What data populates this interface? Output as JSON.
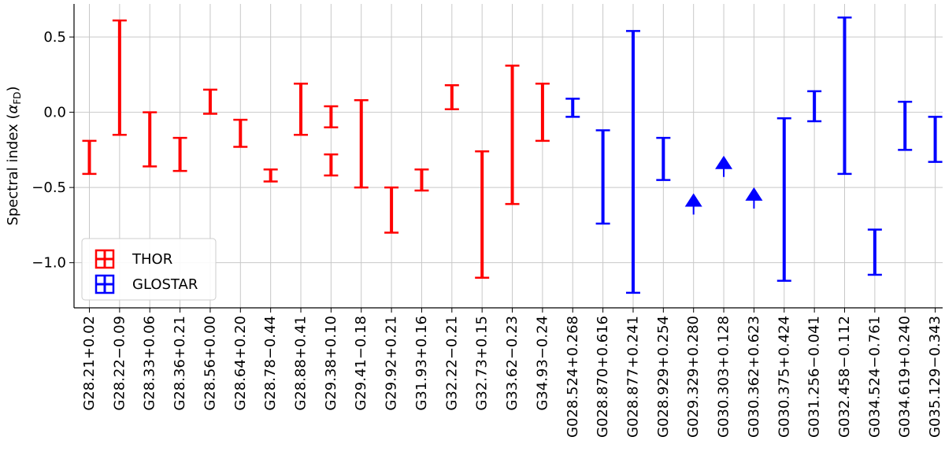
{
  "chart_data": {
    "type": "errorbar",
    "ylabel": "Spectral index (",
    "ylabel_symbol": "α",
    "ylabel_subscript": "FD",
    "ylabel_close": ")",
    "ylim": [
      -1.3,
      0.72
    ],
    "yticks": [
      0.5,
      0.0,
      -0.5,
      -1.0
    ],
    "ytick_labels": [
      "0.5",
      "0.0",
      "−0.5",
      "−1.0"
    ],
    "grid": true,
    "legend_position": "lower-left",
    "colors": {
      "THOR": "#ff0000",
      "GLOSTAR": "#0000ff"
    },
    "categories": [
      "G28.21+0.02",
      "G28.22−0.09",
      "G28.33+0.06",
      "G28.36+0.21",
      "G28.56+0.00",
      "G28.64+0.20",
      "G28.78−0.44",
      "G28.88+0.41",
      "G29.38+0.10",
      "G29.41−0.18",
      "G29.92+0.21",
      "G31.93+0.16",
      "G32.22−0.21",
      "G32.73+0.15",
      "G33.62−0.23",
      "G34.93−0.24",
      "G028.524+0.268",
      "G028.870+0.616",
      "G028.877+0.241",
      "G028.929+0.254",
      "G029.329+0.280",
      "G030.303+0.128",
      "G030.362+0.623",
      "G030.375+0.424",
      "G031.256−0.041",
      "G032.458−0.112",
      "G034.524−0.761",
      "G034.619+0.240",
      "G035.129−0.343"
    ],
    "series": [
      {
        "name": "THOR",
        "color": "#ff0000",
        "ranges": [
          {
            "x": "G28.21+0.02",
            "low": -0.41,
            "high": -0.19
          },
          {
            "x": "G28.22−0.09",
            "low": -0.15,
            "high": 0.61
          },
          {
            "x": "G28.33+0.06",
            "low": -0.36,
            "high": 0.0
          },
          {
            "x": "G28.36+0.21",
            "low": -0.39,
            "high": -0.17
          },
          {
            "x": "G28.56+0.00",
            "low": -0.01,
            "high": 0.15
          },
          {
            "x": "G28.64+0.20",
            "low": -0.23,
            "high": -0.05
          },
          {
            "x": "G28.78−0.44",
            "low": -0.46,
            "high": -0.38
          },
          {
            "x": "G28.88+0.41",
            "low": -0.15,
            "high": 0.19
          },
          {
            "x": "G29.38+0.10",
            "low": -0.1,
            "high": 0.04
          },
          {
            "x": "G29.38+0.10",
            "low": -0.42,
            "high": -0.28
          },
          {
            "x": "G29.41−0.18",
            "low": -0.5,
            "high": 0.08
          },
          {
            "x": "G29.92+0.21",
            "low": -0.8,
            "high": -0.5
          },
          {
            "x": "G31.93+0.16",
            "low": -0.52,
            "high": -0.38
          },
          {
            "x": "G32.22−0.21",
            "low": 0.02,
            "high": 0.18
          },
          {
            "x": "G32.73+0.15",
            "low": -1.1,
            "high": -0.26
          },
          {
            "x": "G33.62−0.23",
            "low": -0.61,
            "high": 0.31
          },
          {
            "x": "G34.93−0.24",
            "low": -0.19,
            "high": 0.19
          }
        ]
      },
      {
        "name": "GLOSTAR",
        "color": "#0000ff",
        "ranges": [
          {
            "x": "G028.524+0.268",
            "low": -0.03,
            "high": 0.09
          },
          {
            "x": "G028.870+0.616",
            "low": -0.74,
            "high": -0.12
          },
          {
            "x": "G028.877+0.241",
            "low": -1.2,
            "high": 0.54
          },
          {
            "x": "G028.929+0.254",
            "low": -0.45,
            "high": -0.17
          },
          {
            "x": "G030.375+0.424",
            "low": -1.12,
            "high": -0.04
          },
          {
            "x": "G031.256−0.041",
            "low": -0.06,
            "high": 0.14
          },
          {
            "x": "G032.458−0.112",
            "low": -0.41,
            "high": 0.63
          },
          {
            "x": "G034.524−0.761",
            "low": -1.08,
            "high": -0.78
          },
          {
            "x": "G034.619+0.240",
            "low": -0.25,
            "high": 0.07
          },
          {
            "x": "G035.129−0.343",
            "low": -0.33,
            "high": -0.03
          }
        ],
        "lower_limits": [
          {
            "x": "G029.329+0.280",
            "value": -0.68
          },
          {
            "x": "G030.303+0.128",
            "value": -0.43
          },
          {
            "x": "G030.362+0.623",
            "value": -0.64
          }
        ]
      }
    ]
  }
}
